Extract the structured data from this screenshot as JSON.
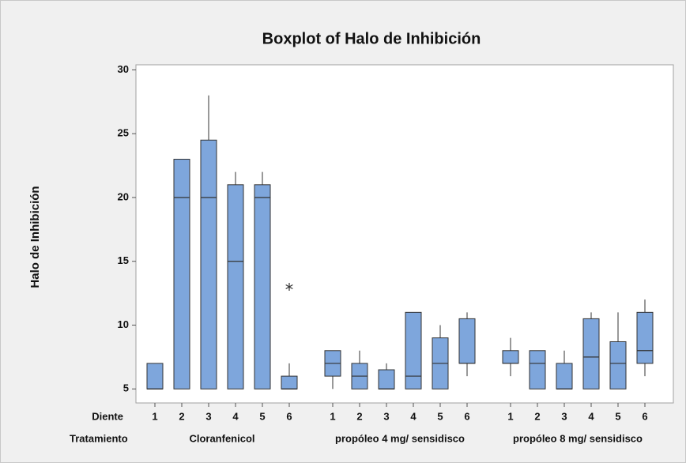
{
  "chart_data": {
    "type": "boxplot",
    "title": "Boxplot of Halo de Inhibición",
    "y_label": "Halo de Inhibición",
    "ylim": [
      3.9,
      30.4
    ],
    "yticks": [
      5,
      10,
      15,
      20,
      25,
      30
    ],
    "color": "#7ea6dc",
    "x_levels": [
      {
        "name": "Diente",
        "labels": [
          "1",
          "2",
          "3",
          "4",
          "5",
          "6",
          "1",
          "2",
          "3",
          "4",
          "5",
          "6",
          "1",
          "2",
          "3",
          "4",
          "5",
          "6"
        ]
      },
      {
        "name": "Tratamiento",
        "labels": [
          "Cloranfenicol",
          "propóleo 4 mg/ sensidisco",
          "propóleo 8 mg/ sensidisco"
        ]
      }
    ],
    "boxes": [
      {
        "min": 5,
        "q1": 5,
        "median": 5,
        "q3": 7,
        "max": 7
      },
      {
        "min": 5,
        "q1": 5,
        "median": 20,
        "q3": 23,
        "max": 23
      },
      {
        "min": 5,
        "q1": 5,
        "median": 20,
        "q3": 24.5,
        "max": 28
      },
      {
        "min": 5,
        "q1": 5,
        "median": 15,
        "q3": 21,
        "max": 22
      },
      {
        "min": 5,
        "q1": 5,
        "median": 20,
        "q3": 21,
        "max": 22
      },
      {
        "min": 5,
        "q1": 5,
        "median": 5,
        "q3": 6,
        "max": 7
      },
      {
        "min": 5,
        "q1": 6,
        "median": 7,
        "q3": 8,
        "max": 8
      },
      {
        "min": 5,
        "q1": 5,
        "median": 6,
        "q3": 7,
        "max": 8
      },
      {
        "min": 5,
        "q1": 5,
        "median": 5,
        "q3": 6.5,
        "max": 7
      },
      {
        "min": 5,
        "q1": 5,
        "median": 6,
        "q3": 11,
        "max": 11
      },
      {
        "min": 5,
        "q1": 5,
        "median": 7,
        "q3": 9,
        "max": 10
      },
      {
        "min": 6,
        "q1": 7,
        "median": 7,
        "q3": 10.5,
        "max": 11
      },
      {
        "min": 6,
        "q1": 7,
        "median": 7,
        "q3": 8,
        "max": 9
      },
      {
        "min": 5,
        "q1": 5,
        "median": 7,
        "q3": 8,
        "max": 8
      },
      {
        "min": 5,
        "q1": 5,
        "median": 5,
        "q3": 7,
        "max": 8
      },
      {
        "min": 5,
        "q1": 5,
        "median": 7.5,
        "q3": 10.5,
        "max": 11
      },
      {
        "min": 5,
        "q1": 5,
        "median": 7,
        "q3": 8.7,
        "max": 11
      },
      {
        "min": 6,
        "q1": 7,
        "median": 8,
        "q3": 11,
        "max": 12
      }
    ],
    "outliers": [
      {
        "box": 5,
        "value": 13
      }
    ]
  }
}
